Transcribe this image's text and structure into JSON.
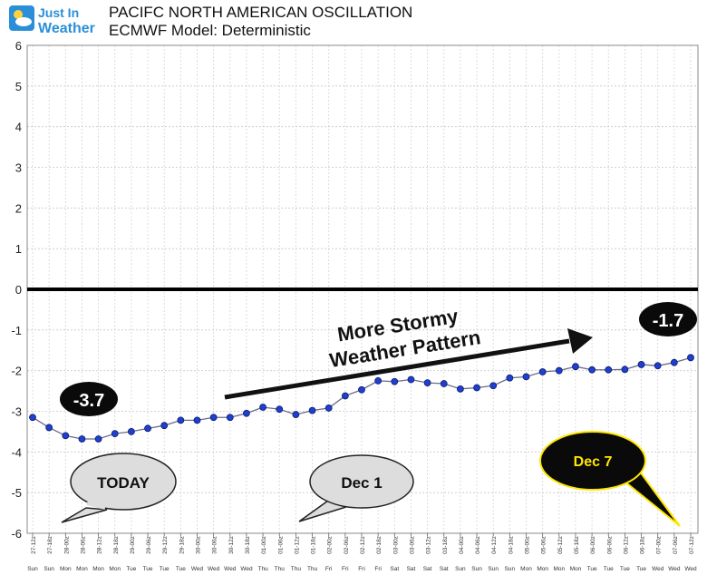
{
  "logo": {
    "line1": "Just In",
    "line2": "Weather",
    "icon": "sun-cloud-icon"
  },
  "header": {
    "title": "PACIFC NORTH AMERICAN OSCILLATION",
    "subtitle": "ECMWF Model: Deterministic"
  },
  "chart_data": {
    "type": "line",
    "title": "PACIFC NORTH AMERICAN OSCILLATION",
    "subtitle": "ECMWF Model: Deterministic",
    "ylim": [
      -6,
      6
    ],
    "yticks": [
      6,
      5,
      4,
      3,
      2,
      1,
      0,
      -1,
      -2,
      -3,
      -4,
      -5,
      -6
    ],
    "grid": true,
    "zero_line": true,
    "x_date_labels": [
      "27-12z",
      "27-18z",
      "28-00z",
      "28-06z",
      "28-12z",
      "28-18z",
      "29-00z",
      "29-06z",
      "29-12z",
      "29-18z",
      "30-00z",
      "30-06z",
      "30-12z",
      "30-18z",
      "01-00z",
      "01-06z",
      "01-12z",
      "01-18z",
      "02-00z",
      "02-06z",
      "02-12z",
      "02-18z",
      "03-00z",
      "03-06z",
      "03-12z",
      "03-18z",
      "04-00z",
      "04-06z",
      "04-12z",
      "04-18z",
      "05-00z",
      "05-06z",
      "05-12z",
      "05-18z",
      "06-00z",
      "06-06z",
      "06-12z",
      "06-18z",
      "07-00z",
      "07-06z",
      "07-12z"
    ],
    "x_day_labels": [
      "Sun",
      "Sun",
      "Mon",
      "Mon",
      "Mon",
      "Mon",
      "Tue",
      "Tue",
      "Tue",
      "Tue",
      "Wed",
      "Wed",
      "Wed",
      "Wed",
      "Thu",
      "Thu",
      "Thu",
      "Thu",
      "Fri",
      "Fri",
      "Fri",
      "Fri",
      "Sat",
      "Sat",
      "Sat",
      "Sat",
      "Sun",
      "Sun",
      "Sun",
      "Sun",
      "Mon",
      "Mon",
      "Mon",
      "Mon",
      "Tue",
      "Tue",
      "Tue",
      "Tue",
      "Wed",
      "Wed",
      "Wed"
    ],
    "series": [
      {
        "color": "#1f3fd0",
        "values": [
          -3.15,
          -3.4,
          -3.6,
          -3.68,
          -3.68,
          -3.55,
          -3.5,
          -3.42,
          -3.35,
          -3.22,
          -3.22,
          -3.15,
          -3.15,
          -3.05,
          -2.9,
          -2.95,
          -3.08,
          -2.98,
          -2.92,
          -2.62,
          -2.47,
          -2.25,
          -2.27,
          -2.22,
          -2.3,
          -2.32,
          -2.45,
          -2.42,
          -2.37,
          -2.18,
          -2.15,
          -2.03,
          -2.0,
          -1.9,
          -1.98,
          -1.98,
          -1.97,
          -1.85,
          -1.88,
          -1.8,
          -1.68
        ]
      }
    ],
    "annotations": [
      {
        "name": "today-start-label",
        "text": "-3.7"
      },
      {
        "name": "end-value-label",
        "text": "-1.7"
      },
      {
        "name": "trend-label",
        "lines": [
          "More Stormy",
          "Weather Pattern"
        ]
      },
      {
        "name": "today-bubble",
        "text": "TODAY"
      },
      {
        "name": "dec1-bubble",
        "text": "Dec 1"
      },
      {
        "name": "dec7-bubble",
        "text": "Dec 7"
      }
    ]
  }
}
